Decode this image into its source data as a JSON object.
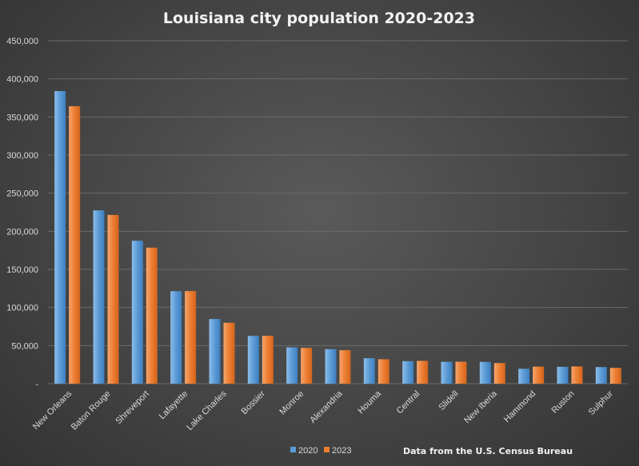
{
  "chart_data": {
    "type": "bar",
    "title": "Louisiana city population 2020-2023",
    "categories": [
      "New Orleans",
      "Baton Rouge",
      "Shreveport",
      "Lafayette",
      "Lake Charles",
      "Bossier",
      "Monroe",
      "Alexandria",
      "Houma",
      "Central",
      "Slidell",
      "New Iberia",
      "Hammond",
      "Ruston",
      "Sulphur"
    ],
    "series": [
      {
        "name": "2020",
        "color": "#5b9bd5",
        "values": [
          383997,
          227470,
          187593,
          121374,
          84872,
          62701,
          47702,
          45275,
          33406,
          29565,
          28781,
          28555,
          19584,
          22166,
          21809
        ]
      },
      {
        "name": "2023",
        "color": "#ed7d31",
        "values": [
          364136,
          221453,
          178527,
          121489,
          79931,
          62914,
          46956,
          43923,
          32046,
          29970,
          28838,
          27046,
          22383,
          22634,
          20720
        ]
      }
    ],
    "ylim": [
      0,
      450000
    ],
    "yticks": [
      0,
      50000,
      100000,
      150000,
      200000,
      250000,
      300000,
      350000,
      400000,
      450000
    ],
    "ytick_labels": [
      "-",
      "50,000",
      "100,000",
      "150,000",
      "200,000",
      "250,000",
      "300,000",
      "350,000",
      "400,000",
      "450,000"
    ],
    "grid": true,
    "legend_position": "bottom"
  },
  "source_note": "Data from the U.S. Census Bureau"
}
